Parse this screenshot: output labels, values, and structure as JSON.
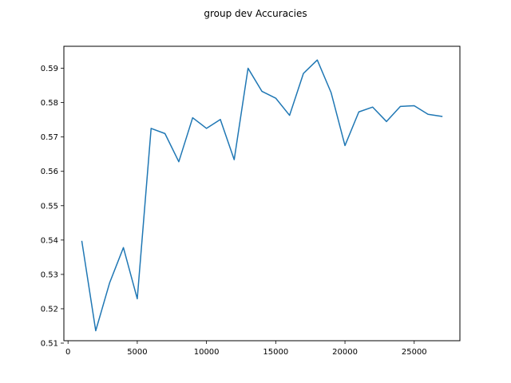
{
  "chart_data": {
    "type": "line",
    "title": "group dev Accuracies",
    "xlabel": "",
    "ylabel": "",
    "xlim": [
      -300,
      28300
    ],
    "ylim": [
      0.5107,
      0.5964
    ],
    "grid": false,
    "xticks": [
      0,
      5000,
      10000,
      15000,
      20000,
      25000
    ],
    "yticks": [
      0.51,
      0.52,
      0.53,
      0.54,
      0.55,
      0.56,
      0.57,
      0.58,
      0.59
    ],
    "line_color": "#1f77b4",
    "series": [
      {
        "x": [
          1000,
          2000,
          3000,
          4000,
          5000,
          6000,
          7000,
          8000,
          9000,
          10000,
          11000,
          12000,
          13000,
          14000,
          15000,
          16000,
          17000,
          18000,
          19000,
          20000,
          21000,
          22000,
          23000,
          24000,
          25000,
          26000,
          27000
        ],
        "values": [
          0.5396,
          0.5136,
          0.5275,
          0.5378,
          0.5229,
          0.5725,
          0.571,
          0.5628,
          0.5756,
          0.5725,
          0.5751,
          0.5634,
          0.59,
          0.5833,
          0.5813,
          0.5763,
          0.5885,
          0.5924,
          0.5829,
          0.5675,
          0.5773,
          0.5787,
          0.5745,
          0.5789,
          0.5791,
          0.5766,
          0.576
        ]
      }
    ]
  }
}
